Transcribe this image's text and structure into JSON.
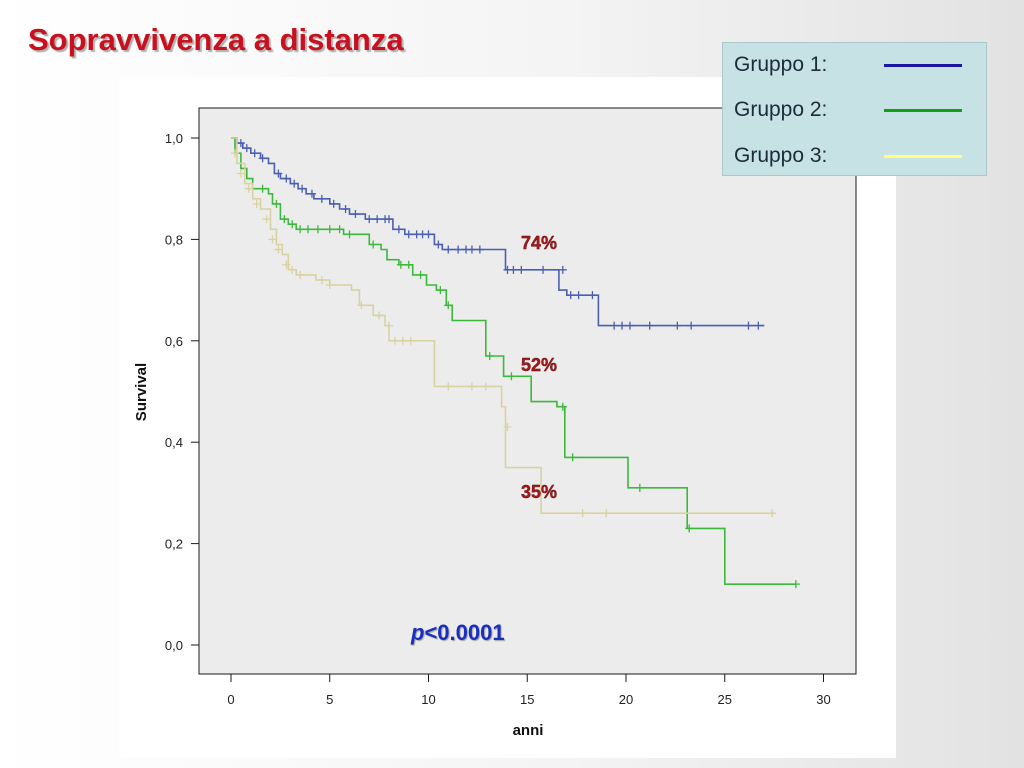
{
  "title": "Sopravvivenza a distanza",
  "legend": [
    {
      "label": "Gruppo 1:",
      "color": "#1a1aa0"
    },
    {
      "label": "Gruppo 2:",
      "color": "#10a010"
    },
    {
      "label": "Gruppo 3:",
      "color": "#ffff80"
    }
  ],
  "p_value": {
    "italic": "p",
    "rest": "<0.0001"
  },
  "chart_data": {
    "type": "line",
    "xlabel": "anni",
    "ylabel": "Survival",
    "xlim": [
      0,
      30
    ],
    "ylim": [
      0,
      1
    ],
    "x_ticks": [
      "0",
      "5",
      "10",
      "15",
      "20",
      "25",
      "30"
    ],
    "y_ticks": [
      "0,0",
      "0,2",
      "0,4",
      "0,6",
      "0,8",
      "1,0"
    ],
    "grid": false,
    "annotations": [
      "74%",
      "52%",
      "35%"
    ],
    "series": [
      {
        "color": "#4a5fb0",
        "steps": [
          [
            0,
            1.0
          ],
          [
            0.3,
            0.99
          ],
          [
            0.6,
            0.98
          ],
          [
            1.0,
            0.97
          ],
          [
            1.5,
            0.96
          ],
          [
            1.9,
            0.95
          ],
          [
            2.2,
            0.93
          ],
          [
            2.5,
            0.92
          ],
          [
            3.0,
            0.91
          ],
          [
            3.4,
            0.9
          ],
          [
            3.8,
            0.89
          ],
          [
            4.2,
            0.88
          ],
          [
            5.0,
            0.87
          ],
          [
            5.5,
            0.86
          ],
          [
            6.0,
            0.85
          ],
          [
            6.8,
            0.84
          ],
          [
            8.2,
            0.82
          ],
          [
            8.8,
            0.81
          ],
          [
            10.3,
            0.79
          ],
          [
            10.7,
            0.78
          ],
          [
            13.9,
            0.74
          ],
          [
            16.6,
            0.7
          ],
          [
            17.0,
            0.69
          ],
          [
            18.6,
            0.63
          ],
          [
            27.0,
            0.63
          ]
        ],
        "censors": [
          [
            0.5,
            0.99
          ],
          [
            0.8,
            0.98
          ],
          [
            1.2,
            0.97
          ],
          [
            1.6,
            0.96
          ],
          [
            2.4,
            0.93
          ],
          [
            2.8,
            0.92
          ],
          [
            3.2,
            0.91
          ],
          [
            3.6,
            0.9
          ],
          [
            4.1,
            0.89
          ],
          [
            4.6,
            0.88
          ],
          [
            5.2,
            0.87
          ],
          [
            5.8,
            0.86
          ],
          [
            6.3,
            0.85
          ],
          [
            7.0,
            0.84
          ],
          [
            7.4,
            0.84
          ],
          [
            7.8,
            0.84
          ],
          [
            8.0,
            0.84
          ],
          [
            8.5,
            0.82
          ],
          [
            9.0,
            0.81
          ],
          [
            9.4,
            0.81
          ],
          [
            9.7,
            0.81
          ],
          [
            10.0,
            0.81
          ],
          [
            10.5,
            0.79
          ],
          [
            11.0,
            0.78
          ],
          [
            11.5,
            0.78
          ],
          [
            11.9,
            0.78
          ],
          [
            12.2,
            0.78
          ],
          [
            12.6,
            0.78
          ],
          [
            14.0,
            0.74
          ],
          [
            14.3,
            0.74
          ],
          [
            14.7,
            0.74
          ],
          [
            15.8,
            0.74
          ],
          [
            16.8,
            0.74
          ],
          [
            17.2,
            0.69
          ],
          [
            17.6,
            0.69
          ],
          [
            18.3,
            0.69
          ],
          [
            19.4,
            0.63
          ],
          [
            19.8,
            0.63
          ],
          [
            20.2,
            0.63
          ],
          [
            21.2,
            0.63
          ],
          [
            22.6,
            0.63
          ],
          [
            23.3,
            0.63
          ],
          [
            26.2,
            0.63
          ],
          [
            26.7,
            0.63
          ]
        ]
      },
      {
        "color": "#3cb83c",
        "steps": [
          [
            0,
            1.0
          ],
          [
            0.2,
            0.97
          ],
          [
            0.5,
            0.94
          ],
          [
            0.8,
            0.92
          ],
          [
            1.1,
            0.9
          ],
          [
            1.9,
            0.89
          ],
          [
            2.1,
            0.87
          ],
          [
            2.5,
            0.84
          ],
          [
            2.9,
            0.83
          ],
          [
            3.3,
            0.82
          ],
          [
            5.7,
            0.81
          ],
          [
            7.0,
            0.79
          ],
          [
            7.6,
            0.78
          ],
          [
            7.9,
            0.76
          ],
          [
            8.5,
            0.75
          ],
          [
            9.2,
            0.73
          ],
          [
            9.9,
            0.71
          ],
          [
            10.4,
            0.7
          ],
          [
            10.9,
            0.67
          ],
          [
            11.2,
            0.64
          ],
          [
            12.9,
            0.57
          ],
          [
            13.8,
            0.53
          ],
          [
            15.2,
            0.48
          ],
          [
            16.5,
            0.47
          ],
          [
            16.9,
            0.37
          ],
          [
            20.1,
            0.31
          ],
          [
            23.1,
            0.23
          ],
          [
            25.0,
            0.12
          ],
          [
            28.6,
            0.12
          ]
        ],
        "censors": [
          [
            1.6,
            0.9
          ],
          [
            2.3,
            0.87
          ],
          [
            2.7,
            0.84
          ],
          [
            3.1,
            0.83
          ],
          [
            3.5,
            0.82
          ],
          [
            3.9,
            0.82
          ],
          [
            4.4,
            0.82
          ],
          [
            5.0,
            0.82
          ],
          [
            5.5,
            0.82
          ],
          [
            6.0,
            0.81
          ],
          [
            7.2,
            0.79
          ],
          [
            8.6,
            0.75
          ],
          [
            9.0,
            0.75
          ],
          [
            9.6,
            0.73
          ],
          [
            10.6,
            0.7
          ],
          [
            11.0,
            0.67
          ],
          [
            13.1,
            0.57
          ],
          [
            14.2,
            0.53
          ],
          [
            16.8,
            0.47
          ],
          [
            17.3,
            0.37
          ],
          [
            20.7,
            0.31
          ],
          [
            23.2,
            0.23
          ],
          [
            28.6,
            0.12
          ]
        ]
      },
      {
        "color": "#d8d2a0",
        "steps": [
          [
            0,
            1.0
          ],
          [
            0.3,
            0.95
          ],
          [
            0.7,
            0.91
          ],
          [
            1.1,
            0.88
          ],
          [
            1.5,
            0.86
          ],
          [
            2.0,
            0.82
          ],
          [
            2.3,
            0.79
          ],
          [
            2.6,
            0.77
          ],
          [
            2.9,
            0.74
          ],
          [
            3.3,
            0.73
          ],
          [
            4.3,
            0.72
          ],
          [
            5.0,
            0.71
          ],
          [
            6.1,
            0.7
          ],
          [
            6.5,
            0.67
          ],
          [
            7.2,
            0.65
          ],
          [
            7.8,
            0.63
          ],
          [
            8.0,
            0.6
          ],
          [
            10.3,
            0.51
          ],
          [
            13.7,
            0.47
          ],
          [
            13.9,
            0.35
          ],
          [
            15.7,
            0.26
          ],
          [
            27.5,
            0.26
          ]
        ],
        "censors": [
          [
            0.2,
            0.97
          ],
          [
            0.5,
            0.93
          ],
          [
            0.9,
            0.9
          ],
          [
            1.3,
            0.87
          ],
          [
            1.8,
            0.84
          ],
          [
            2.1,
            0.8
          ],
          [
            2.4,
            0.78
          ],
          [
            2.8,
            0.75
          ],
          [
            3.1,
            0.74
          ],
          [
            3.5,
            0.73
          ],
          [
            4.6,
            0.72
          ],
          [
            5.0,
            0.71
          ],
          [
            6.6,
            0.67
          ],
          [
            7.5,
            0.65
          ],
          [
            8.0,
            0.63
          ],
          [
            8.3,
            0.6
          ],
          [
            8.7,
            0.6
          ],
          [
            9.1,
            0.6
          ],
          [
            11.0,
            0.51
          ],
          [
            12.2,
            0.51
          ],
          [
            12.9,
            0.51
          ],
          [
            14.0,
            0.43
          ],
          [
            17.8,
            0.26
          ],
          [
            19.0,
            0.26
          ],
          [
            27.4,
            0.26
          ]
        ]
      }
    ]
  }
}
